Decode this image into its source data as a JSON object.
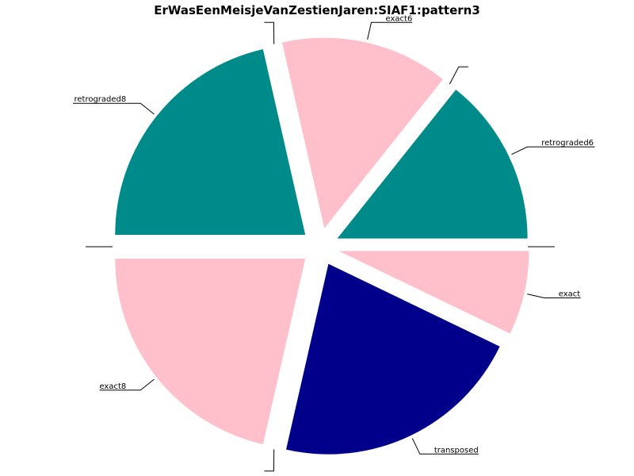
{
  "chart_data": {
    "type": "pie",
    "title": "ErWasEenMeisjeVanZestienJaren:SIAF1:pattern3",
    "start_angle_deg": 0,
    "direction": "counterclockwise",
    "exploded": true,
    "legend": "none",
    "slices": [
      {
        "label": "retrograded6",
        "value": 2,
        "color": "#008b8b"
      },
      {
        "label": "",
        "value": 0,
        "color": "#00008b"
      },
      {
        "label": "exact6",
        "value": 2,
        "color": "#ffc0cb"
      },
      {
        "label": "",
        "value": 0,
        "color": "#00008b"
      },
      {
        "label": "retrograded8",
        "value": 3,
        "color": "#008b8b"
      },
      {
        "label": "",
        "value": 0,
        "color": "#00008b"
      },
      {
        "label": "exact8",
        "value": 3,
        "color": "#ffc0cb"
      },
      {
        "label": "",
        "value": 0,
        "color": "#00008b"
      },
      {
        "label": "transposed",
        "value": 3,
        "color": "#00008b"
      },
      {
        "label": "exact",
        "value": 1,
        "color": "#ffc0cb"
      },
      {
        "label": "",
        "value": 0,
        "color": "#00008b"
      }
    ]
  }
}
